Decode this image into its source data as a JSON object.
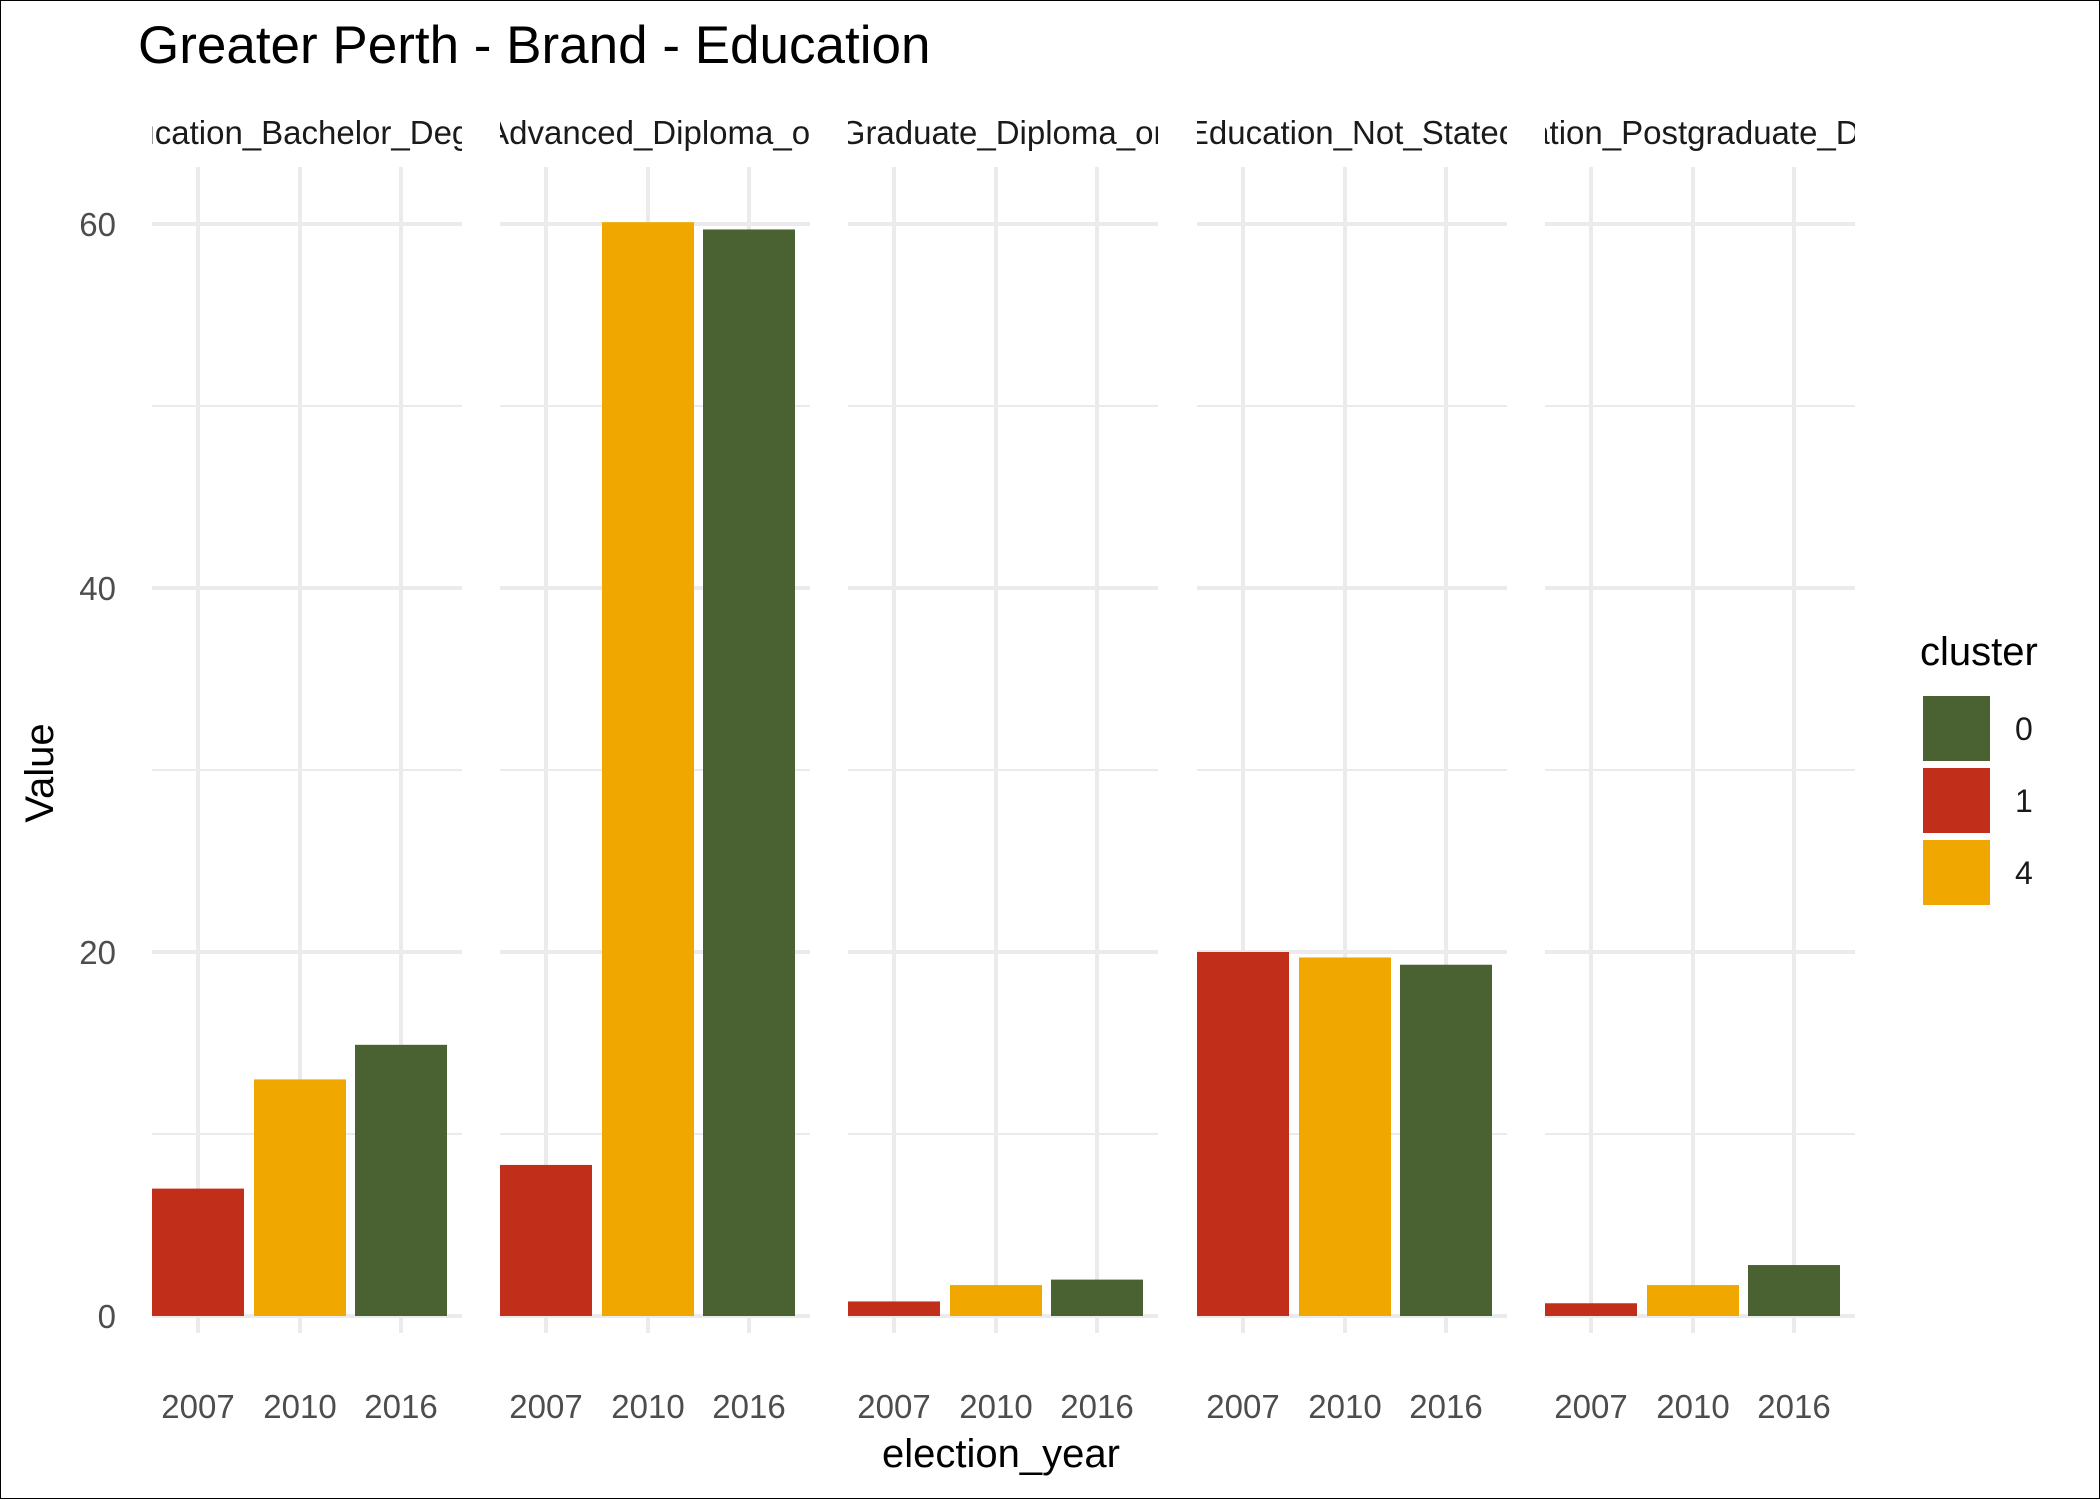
{
  "chart_data": {
    "type": "bar",
    "title": "Greater Perth - Brand - Education",
    "xlabel": "election_year",
    "ylabel": "Value",
    "ylim": [
      0,
      60
    ],
    "yticks": [
      0,
      20,
      40,
      60
    ],
    "grid": true,
    "legend": {
      "title": "cluster",
      "placement": "right",
      "entries": [
        {
          "label": "0",
          "color": "#4a6131"
        },
        {
          "label": "1",
          "color": "#c12f1a"
        },
        {
          "label": "4",
          "color": "#f0a800"
        }
      ]
    },
    "categories": [
      "2007",
      "2010",
      "2016"
    ],
    "cluster_by_year": {
      "2007": "1",
      "2010": "4",
      "2016": "0"
    },
    "facets": [
      {
        "label": "Education_Bachelor_Degree",
        "values": [
          7.0,
          13.0,
          14.9
        ]
      },
      {
        "label": "Education_Advanced_Diploma_or_Certificate",
        "values": [
          8.3,
          60.1,
          59.7
        ]
      },
      {
        "label": "Education_Graduate_Diploma_or_Certificate",
        "values": [
          0.8,
          1.7,
          2.0
        ]
      },
      {
        "label": "Education_Not_Stated",
        "values": [
          20.0,
          19.7,
          19.3
        ]
      },
      {
        "label": "Education_Postgraduate_Degree",
        "values": [
          0.7,
          1.7,
          2.8
        ]
      }
    ]
  }
}
